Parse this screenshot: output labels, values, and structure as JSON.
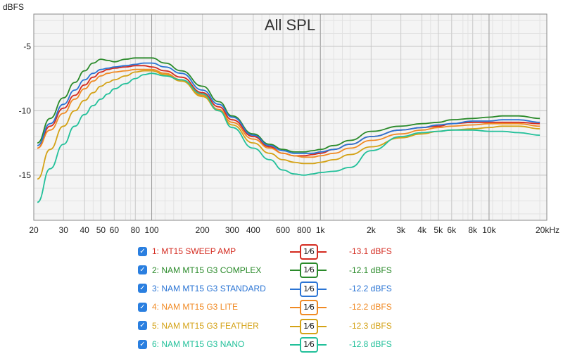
{
  "chart_data": {
    "type": "line",
    "title": "All SPL",
    "ylabel": "dBFS",
    "xlabel": "",
    "xscale": "log",
    "xlim": [
      20,
      22000
    ],
    "ylim": [
      -18.5,
      -2.5
    ],
    "grid": true,
    "x_ticks": [
      {
        "value": 20,
        "label": "20"
      },
      {
        "value": 30,
        "label": "30"
      },
      {
        "value": 40,
        "label": "40"
      },
      {
        "value": 50,
        "label": "50"
      },
      {
        "value": 60,
        "label": "60"
      },
      {
        "value": 80,
        "label": "80"
      },
      {
        "value": 100,
        "label": "100"
      },
      {
        "value": 200,
        "label": "200"
      },
      {
        "value": 300,
        "label": "300"
      },
      {
        "value": 400,
        "label": "400"
      },
      {
        "value": 600,
        "label": "600"
      },
      {
        "value": 800,
        "label": "800"
      },
      {
        "value": 1000,
        "label": "1k"
      },
      {
        "value": 2000,
        "label": "2k"
      },
      {
        "value": 3000,
        "label": "3k"
      },
      {
        "value": 4000,
        "label": "4k"
      },
      {
        "value": 5000,
        "label": "5k"
      },
      {
        "value": 6000,
        "label": "6k"
      },
      {
        "value": 8000,
        "label": "8k"
      },
      {
        "value": 10000,
        "label": "10k"
      },
      {
        "value": 22000,
        "label": "20kHz"
      }
    ],
    "y_ticks": [
      {
        "value": -5,
        "label": "-5"
      },
      {
        "value": -10,
        "label": "-10"
      },
      {
        "value": -15,
        "label": "-15"
      }
    ],
    "series": [
      {
        "name": "1: MT15 SWEEP AMP",
        "color": "#d42a1f",
        "x": [
          21,
          25,
          30,
          35,
          40,
          45,
          50,
          55,
          60,
          70,
          80,
          90,
          100,
          120,
          150,
          200,
          250,
          300,
          400,
          500,
          600,
          700,
          800,
          900,
          1000,
          1200,
          1500,
          2000,
          3000,
          4000,
          5000,
          6000,
          8000,
          10000,
          12000,
          15000,
          20000
        ],
        "y": [
          -12.9,
          -11.2,
          -9.8,
          -8.8,
          -8.0,
          -7.4,
          -7.0,
          -6.8,
          -6.7,
          -6.6,
          -6.5,
          -6.5,
          -6.6,
          -6.9,
          -7.4,
          -8.6,
          -9.7,
          -10.7,
          -12.0,
          -12.8,
          -13.3,
          -13.5,
          -13.5,
          -13.4,
          -13.3,
          -13.0,
          -12.6,
          -12.0,
          -11.5,
          -11.3,
          -11.2,
          -11.0,
          -10.9,
          -10.9,
          -10.9,
          -10.9,
          -11.0
        ]
      },
      {
        "name": "2: NAM MT15 G3 COMPLEX",
        "color": "#2a8a2a",
        "x": [
          21,
          25,
          30,
          35,
          40,
          45,
          50,
          55,
          60,
          70,
          80,
          90,
          100,
          120,
          150,
          200,
          250,
          300,
          400,
          500,
          600,
          700,
          800,
          900,
          1000,
          1200,
          1500,
          2000,
          3000,
          4000,
          5000,
          6000,
          8000,
          10000,
          12000,
          15000,
          20000
        ],
        "y": [
          -12.5,
          -10.6,
          -9.0,
          -7.8,
          -6.9,
          -6.3,
          -6.0,
          -6.1,
          -6.2,
          -6.0,
          -5.9,
          -5.9,
          -5.9,
          -6.3,
          -6.9,
          -8.1,
          -9.3,
          -10.4,
          -11.8,
          -12.6,
          -13.0,
          -13.2,
          -13.2,
          -13.1,
          -13.0,
          -12.7,
          -12.3,
          -11.6,
          -11.2,
          -11.0,
          -10.9,
          -10.7,
          -10.6,
          -10.5,
          -10.4,
          -10.4,
          -10.6
        ]
      },
      {
        "name": "3: NAM MT15 G3 STANDARD",
        "color": "#2a74d4",
        "x": [
          21,
          25,
          30,
          35,
          40,
          45,
          50,
          55,
          60,
          70,
          80,
          90,
          100,
          120,
          150,
          200,
          250,
          300,
          400,
          500,
          600,
          700,
          800,
          900,
          1000,
          1200,
          1500,
          2000,
          3000,
          4000,
          5000,
          6000,
          8000,
          10000,
          12000,
          15000,
          20000
        ],
        "y": [
          -12.7,
          -11.0,
          -9.5,
          -8.4,
          -7.6,
          -7.1,
          -6.8,
          -6.7,
          -6.6,
          -6.5,
          -6.4,
          -6.3,
          -6.3,
          -6.6,
          -7.1,
          -8.4,
          -9.5,
          -10.5,
          -11.9,
          -12.7,
          -13.1,
          -13.3,
          -13.3,
          -13.3,
          -13.2,
          -13.0,
          -12.6,
          -12.0,
          -11.5,
          -11.3,
          -11.1,
          -11.0,
          -10.8,
          -10.8,
          -10.7,
          -10.7,
          -10.9
        ]
      },
      {
        "name": "4: NAM MT15 G3 LITE",
        "color": "#f08a24",
        "x": [
          21,
          25,
          30,
          35,
          40,
          45,
          50,
          55,
          60,
          70,
          80,
          90,
          100,
          120,
          150,
          200,
          250,
          300,
          400,
          500,
          600,
          700,
          800,
          900,
          1000,
          1200,
          1500,
          2000,
          3000,
          4000,
          5000,
          6000,
          8000,
          10000,
          12000,
          15000,
          20000
        ],
        "y": [
          -12.9,
          -11.5,
          -10.2,
          -9.1,
          -8.3,
          -7.7,
          -7.3,
          -7.1,
          -7.0,
          -6.9,
          -6.8,
          -6.8,
          -6.8,
          -7.1,
          -7.6,
          -8.8,
          -9.9,
          -10.9,
          -12.2,
          -12.9,
          -13.3,
          -13.5,
          -13.6,
          -13.6,
          -13.5,
          -13.3,
          -12.9,
          -12.3,
          -11.8,
          -11.5,
          -11.3,
          -11.2,
          -11.1,
          -11.0,
          -11.0,
          -11.0,
          -11.2
        ]
      },
      {
        "name": "5: NAM MT15 G3 FEATHER",
        "color": "#d4a216",
        "x": [
          21,
          25,
          30,
          35,
          40,
          45,
          50,
          55,
          60,
          70,
          80,
          90,
          100,
          120,
          150,
          200,
          250,
          300,
          400,
          500,
          600,
          700,
          800,
          900,
          1000,
          1200,
          1500,
          2000,
          3000,
          4000,
          5000,
          6000,
          8000,
          10000,
          12000,
          15000,
          20000
        ],
        "y": [
          -15.3,
          -13.0,
          -11.2,
          -10.0,
          -9.2,
          -8.6,
          -8.1,
          -7.8,
          -7.6,
          -7.3,
          -7.0,
          -6.9,
          -6.9,
          -7.2,
          -7.7,
          -8.9,
          -10.0,
          -11.1,
          -12.5,
          -13.3,
          -13.8,
          -14.0,
          -14.1,
          -14.1,
          -14.0,
          -13.8,
          -13.4,
          -12.8,
          -12.1,
          -11.8,
          -11.6,
          -11.5,
          -11.4,
          -11.3,
          -11.2,
          -11.2,
          -11.4
        ]
      },
      {
        "name": "6: NAM MT15 G3 NANO",
        "color": "#22c09a",
        "x": [
          21,
          25,
          30,
          35,
          40,
          45,
          50,
          55,
          60,
          70,
          80,
          90,
          100,
          120,
          150,
          200,
          250,
          300,
          400,
          500,
          600,
          700,
          800,
          900,
          1000,
          1200,
          1500,
          2000,
          3000,
          4000,
          5000,
          6000,
          8000,
          10000,
          12000,
          15000,
          20000
        ],
        "y": [
          -17.1,
          -14.5,
          -12.6,
          -11.2,
          -10.3,
          -9.6,
          -9.1,
          -8.7,
          -8.3,
          -7.9,
          -7.5,
          -7.2,
          -7.1,
          -7.3,
          -7.6,
          -8.7,
          -10.0,
          -11.3,
          -12.9,
          -13.8,
          -14.6,
          -14.9,
          -15.0,
          -14.9,
          -14.8,
          -14.7,
          -14.4,
          -13.1,
          -12.0,
          -11.7,
          -11.6,
          -11.5,
          -11.5,
          -11.6,
          -11.6,
          -11.7,
          -11.9
        ]
      }
    ]
  },
  "legend": {
    "smoothing_label": "1⁄6",
    "items": [
      {
        "label": "1: MT15 SWEEP AMP",
        "level": "-13.1 dBFS",
        "color": "#d42a1f"
      },
      {
        "label": "2: NAM MT15 G3 COMPLEX",
        "level": "-12.1 dBFS",
        "color": "#2a8a2a"
      },
      {
        "label": "3: NAM MT15 G3 STANDARD",
        "level": "-12.2 dBFS",
        "color": "#2a74d4"
      },
      {
        "label": "4: NAM MT15 G3 LITE",
        "level": "-12.2 dBFS",
        "color": "#f08a24"
      },
      {
        "label": "5: NAM MT15 G3 FEATHER",
        "level": "-12.3 dBFS",
        "color": "#d4a216"
      },
      {
        "label": "6: NAM MT15 G3 NANO",
        "level": "-12.8 dBFS",
        "color": "#22c09a"
      }
    ]
  }
}
